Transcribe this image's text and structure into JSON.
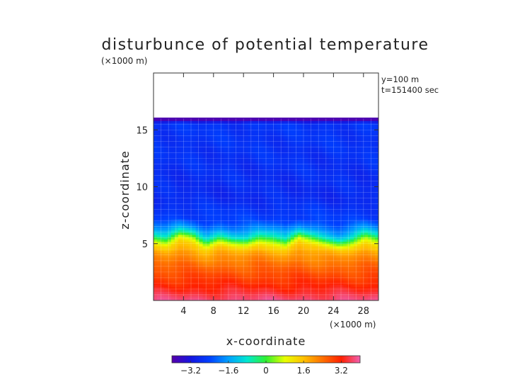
{
  "chart_data": {
    "type": "heatmap",
    "title": "disturbunce of potential temperature",
    "xlabel": "x-coordinate",
    "ylabel": "z-coordinate",
    "x_unit": "(×1000 m)",
    "y_unit": "(×1000 m)",
    "annotations": [
      "y=100 m",
      "t=151400 sec"
    ],
    "xlim": [
      0,
      30
    ],
    "ylim": [
      0,
      20
    ],
    "x_ticks": [
      4,
      8,
      12,
      16,
      20,
      24,
      28
    ],
    "y_ticks": [
      5,
      10,
      15
    ],
    "x_tick_labels": [
      "4",
      "8",
      "12",
      "16",
      "20",
      "24",
      "28"
    ],
    "y_tick_labels": [
      "5",
      "10",
      "15"
    ],
    "colorbar": {
      "range": [
        -4.0,
        4.0
      ],
      "ticks": [
        -3.2,
        -1.6,
        0,
        1.6,
        3.2
      ],
      "tick_labels": [
        "−3.2",
        "−1.6",
        "0",
        "1.6",
        "3.2"
      ]
    },
    "data_top_z": 16.0,
    "transition_z": [
      5.6,
      5.4,
      6.0,
      5.8,
      5.0,
      5.5,
      5.3,
      5.2,
      5.6,
      5.5,
      5.1,
      5.9,
      5.6,
      5.2,
      5.0,
      5.3,
      5.8,
      5.5
    ],
    "profile": [
      {
        "z": 0.0,
        "v": 3.8
      },
      {
        "z": 1.0,
        "v": 3.3
      },
      {
        "z": 2.0,
        "v": 2.9
      },
      {
        "z": 3.0,
        "v": 2.5
      },
      {
        "z": 4.0,
        "v": 2.0
      },
      {
        "z": 4.7,
        "v": 1.4
      },
      {
        "z": 5.2,
        "v": 0.4
      },
      {
        "z": 5.6,
        "v": -0.6
      },
      {
        "z": 6.2,
        "v": -1.6
      },
      {
        "z": 7.0,
        "v": -2.4
      },
      {
        "z": 9.0,
        "v": -2.8
      },
      {
        "z": 12.0,
        "v": -2.7
      },
      {
        "z": 15.5,
        "v": -2.6
      },
      {
        "z": 16.0,
        "v": -3.6
      }
    ],
    "grid": true,
    "colormap": [
      "#5500aa",
      "#1515e0",
      "#0040ff",
      "#00a0ff",
      "#00e8d0",
      "#30f030",
      "#e8ff00",
      "#ffc000",
      "#ff7000",
      "#ff2000",
      "#f060b0"
    ]
  }
}
